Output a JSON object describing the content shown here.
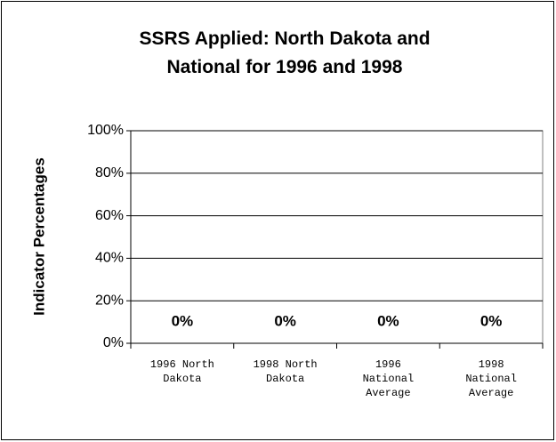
{
  "chart_data": {
    "type": "bar",
    "title": "SSRS Applied: North Dakota and National for 1996 and 1998",
    "y_axis_label": "Indicator Percentages",
    "categories": [
      "1996 North Dakota",
      "1998 North Dakota",
      "1996 National Average",
      "1998 National Average"
    ],
    "values": [
      0,
      0,
      0,
      0
    ],
    "value_labels": [
      "0%",
      "0%",
      "0%",
      "0%"
    ],
    "color": "#000080",
    "ylim": [
      0,
      100
    ],
    "yticks": [
      {
        "value": 0,
        "label": "0%"
      },
      {
        "value": 20,
        "label": "20%"
      },
      {
        "value": 40,
        "label": "40%"
      },
      {
        "value": 60,
        "label": "60%"
      },
      {
        "value": 80,
        "label": "80%"
      },
      {
        "value": 100,
        "label": "100%"
      }
    ],
    "grid": true
  }
}
